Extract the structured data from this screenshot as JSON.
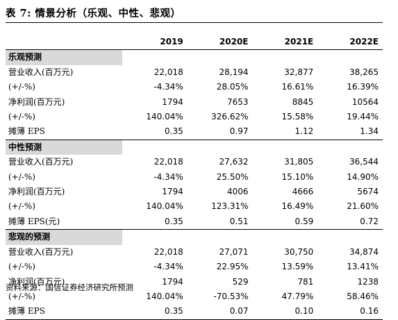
{
  "title": "表 7:  情景分析（乐观、中性、悲观）",
  "columns": [
    "2019",
    "2020E",
    "2021E",
    "2022E"
  ],
  "sections": [
    {
      "name": "乐观预测",
      "rows": [
        {
          "label": "营业收入(百万元)",
          "values": [
            "22,018",
            "28,194",
            "32,877",
            "38,265"
          ]
        },
        {
          "label": "(+/-%)",
          "values": [
            "-4.34%",
            "28.05%",
            "16.61%",
            "16.39%"
          ]
        },
        {
          "label": "净利润(百万元)",
          "values": [
            "1794",
            "7653",
            "8845",
            "10564"
          ]
        },
        {
          "label": "(+/-%)",
          "values": [
            "140.04%",
            "326.62%",
            "15.58%",
            "19.44%"
          ]
        },
        {
          "label": "摊薄 EPS",
          "values": [
            "0.35",
            "0.97",
            "1.12",
            "1.34"
          ]
        }
      ]
    },
    {
      "name": "中性预测",
      "rows": [
        {
          "label": "营业收入(百万元)",
          "values": [
            "22,018",
            "27,632",
            "31,805",
            "36,544"
          ]
        },
        {
          "label": "(+/-%)",
          "values": [
            "-4.34%",
            "25.50%",
            "15.10%",
            "14.90%"
          ]
        },
        {
          "label": "净利润(百万元)",
          "values": [
            "1794",
            "4006",
            "4666",
            "5674"
          ]
        },
        {
          "label": "(+/-%)",
          "values": [
            "140.04%",
            "123.31%",
            "16.49%",
            "21.60%"
          ]
        },
        {
          "label": "摊薄 EPS(元)",
          "values": [
            "0.35",
            "0.51",
            "0.59",
            "0.72"
          ]
        }
      ]
    },
    {
      "name": "悲观的预测",
      "rows": [
        {
          "label": "营业收入(百万元)",
          "values": [
            "22,018",
            "27,071",
            "30,750",
            "34,874"
          ]
        },
        {
          "label": "(+/-%)",
          "values": [
            "-4.34%",
            "22.95%",
            "13.59%",
            "13.41%"
          ]
        },
        {
          "label": "净利润(百万元)",
          "values": [
            "1794",
            "529",
            "781",
            "1238"
          ]
        },
        {
          "label": "(+/-%)",
          "values": [
            "140.04%",
            "-70.53%",
            "47.79%",
            "58.46%"
          ]
        },
        {
          "label": "摊薄 EPS",
          "values": [
            "0.35",
            "0.07",
            "0.10",
            "0.16"
          ]
        }
      ]
    }
  ],
  "source": "资料来源：国信证券经济研究所预测"
}
